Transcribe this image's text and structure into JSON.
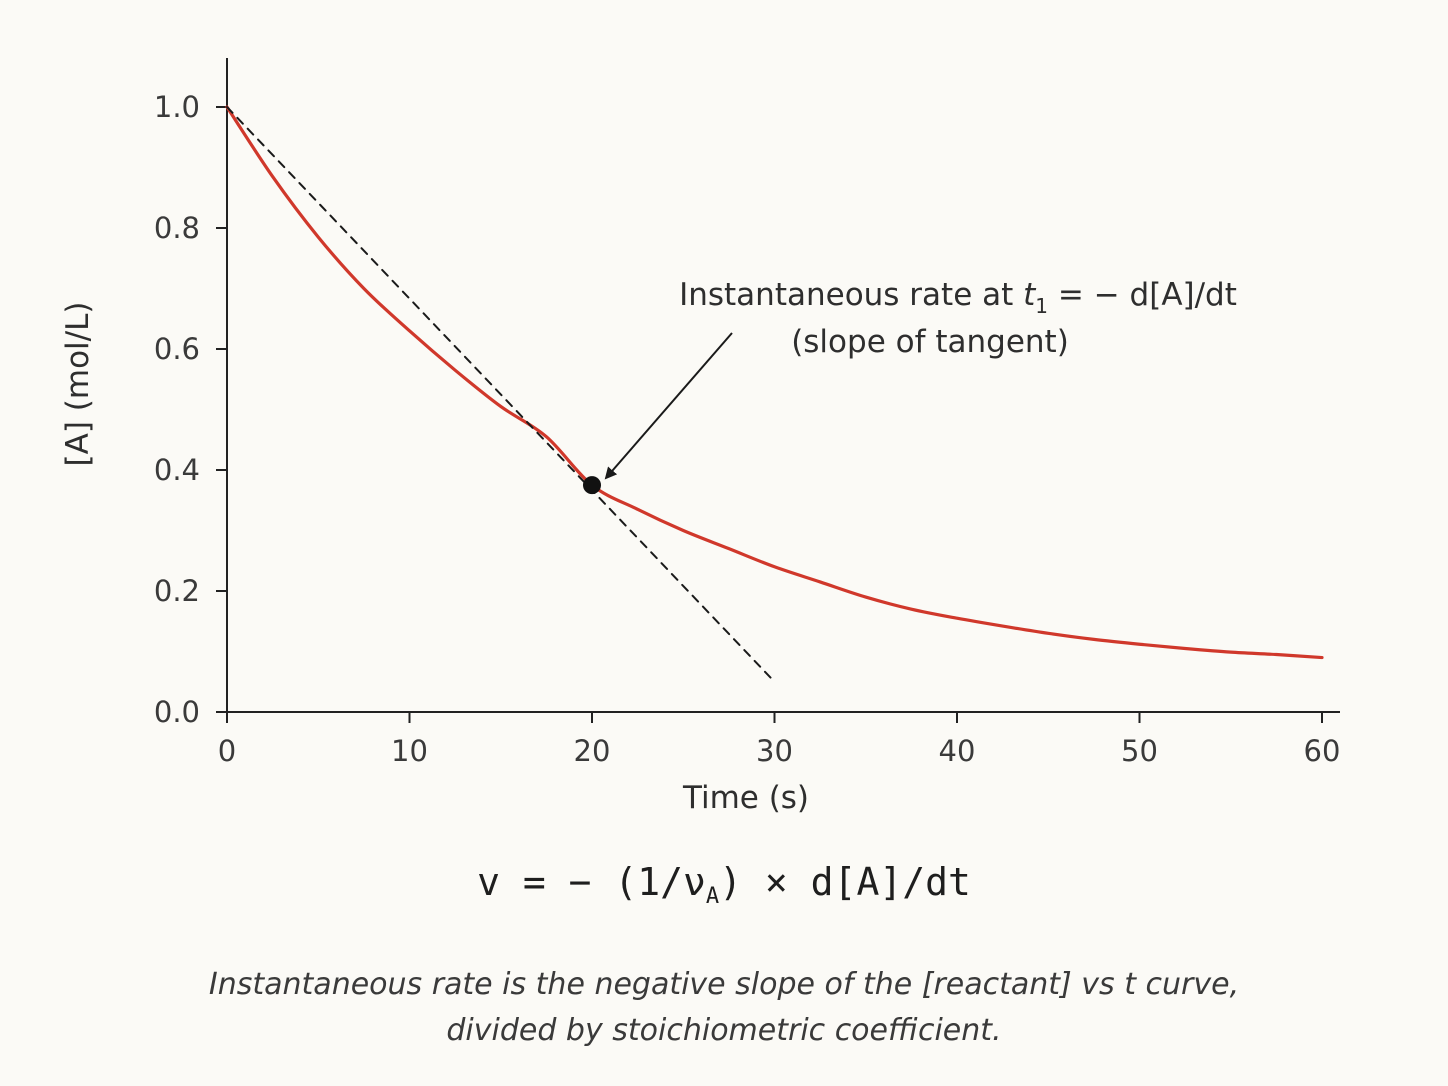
{
  "chart_data": {
    "type": "line",
    "xlabel": "Time (s)",
    "ylabel": "[A] (mol/L)",
    "xlim": [
      0,
      60
    ],
    "ylim": [
      0,
      1.0
    ],
    "x_ticks": [
      "0",
      "10",
      "20",
      "30",
      "40",
      "50",
      "60"
    ],
    "y_ticks": [
      "0.0",
      "0.2",
      "0.4",
      "0.6",
      "0.8",
      "1.0"
    ],
    "grid": false,
    "series": [
      {
        "x": [
          0,
          2.5,
          5,
          7.5,
          10,
          12.5,
          15,
          17.5,
          20,
          22.5,
          25,
          27.5,
          30,
          32.5,
          35,
          37.5,
          40,
          42.5,
          45,
          47.5,
          50,
          52.5,
          55,
          57.5,
          60
        ],
        "y": [
          1.0,
          0.885,
          0.785,
          0.7,
          0.63,
          0.565,
          0.505,
          0.455,
          0.375,
          0.335,
          0.3,
          0.27,
          0.24,
          0.215,
          0.19,
          0.17,
          0.155,
          0.142,
          0.13,
          0.12,
          0.112,
          0.105,
          0.099,
          0.095,
          0.09
        ],
        "color": "#d0382b"
      },
      {
        "style": "dashed",
        "x": [
          0,
          30
        ],
        "y": [
          1.0,
          0.05
        ],
        "color": "#1a1a1a"
      }
    ],
    "points": [
      {
        "x": 20,
        "y": 0.375,
        "color": "#111111"
      }
    ],
    "annotation": {
      "line1_prefix": "Instantaneous rate at ",
      "line1_var": "t",
      "line1_sub": "1",
      "line1_suffix": " = − d[A]/dt",
      "line2": "(slope of tangent)",
      "arrow_to": {
        "x": 20,
        "y": 0.4
      }
    }
  },
  "formula": {
    "prefix": "v = − (1/ν",
    "sub": "A",
    "suffix": ") × d[A]/dt"
  },
  "caption": {
    "line1": "Instantaneous rate is the negative slope of the [reactant] vs t curve,",
    "line2": "divided by stoichiometric coefficient."
  }
}
